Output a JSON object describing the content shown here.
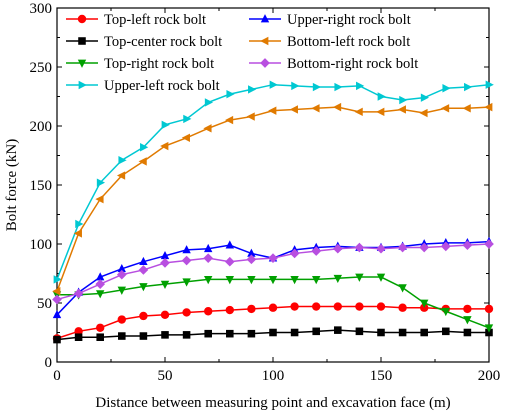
{
  "chart_data": {
    "type": "line",
    "title": "",
    "xlabel": "Distance between measuring point and excavation face (m)",
    "ylabel": "Bolt force (kN)",
    "xlim": [
      0,
      200
    ],
    "ylim": [
      0,
      300
    ],
    "xticks": [
      0,
      50,
      100,
      150,
      200
    ],
    "yticks": [
      0,
      50,
      100,
      150,
      200,
      250,
      300
    ],
    "grid": false,
    "legend_position": "top-left, two columns",
    "x": [
      0,
      10,
      20,
      30,
      40,
      50,
      60,
      70,
      80,
      90,
      100,
      110,
      120,
      130,
      140,
      150,
      160,
      170,
      180,
      190,
      200
    ],
    "series": [
      {
        "name": "Top-left rock bolt",
        "color": "#ff0000",
        "marker": "circle",
        "values": [
          20,
          26,
          29,
          36,
          39,
          40,
          42,
          43,
          44,
          45,
          46,
          47,
          47,
          47,
          47,
          47,
          46,
          46,
          45,
          45,
          45
        ]
      },
      {
        "name": "Top-center rock bolt",
        "color": "#000000",
        "marker": "square",
        "values": [
          19,
          21,
          21,
          22,
          22,
          23,
          23,
          24,
          24,
          24,
          25,
          25,
          26,
          27,
          26,
          25,
          25,
          25,
          26,
          25,
          25
        ]
      },
      {
        "name": "Top-right rock bolt",
        "color": "#00a000",
        "marker": "triangle-down",
        "values": [
          57,
          57,
          58,
          61,
          64,
          66,
          68,
          70,
          70,
          70,
          70,
          70,
          70,
          71,
          72,
          72,
          63,
          50,
          43,
          36,
          29
        ]
      },
      {
        "name": "Upper-left rock bolt",
        "color": "#00c8d2",
        "marker": "triangle-right",
        "values": [
          70,
          117,
          152,
          171,
          182,
          201,
          206,
          220,
          227,
          231,
          235,
          234,
          233,
          233,
          234,
          225,
          222,
          224,
          232,
          233,
          235
        ]
      },
      {
        "name": "Upper-right rock bolt",
        "color": "#0000ff",
        "marker": "triangle-up",
        "values": [
          40,
          59,
          72,
          79,
          85,
          90,
          95,
          96,
          99,
          92,
          88,
          95,
          97,
          98,
          97,
          97,
          98,
          100,
          101,
          101,
          102
        ]
      },
      {
        "name": "Bottom-left rock bolt",
        "color": "#e07a00",
        "marker": "triangle-left",
        "values": [
          60,
          109,
          138,
          158,
          170,
          183,
          190,
          198,
          205,
          208,
          213,
          214,
          215,
          216,
          212,
          212,
          214,
          211,
          215,
          215,
          216
        ]
      },
      {
        "name": "Bottom-right rock bolt",
        "color": "#b84fe0",
        "marker": "diamond",
        "values": [
          53,
          58,
          66,
          74,
          78,
          84,
          86,
          88,
          85,
          87,
          88,
          92,
          94,
          96,
          97,
          96,
          97,
          97,
          98,
          99,
          100
        ]
      }
    ]
  }
}
